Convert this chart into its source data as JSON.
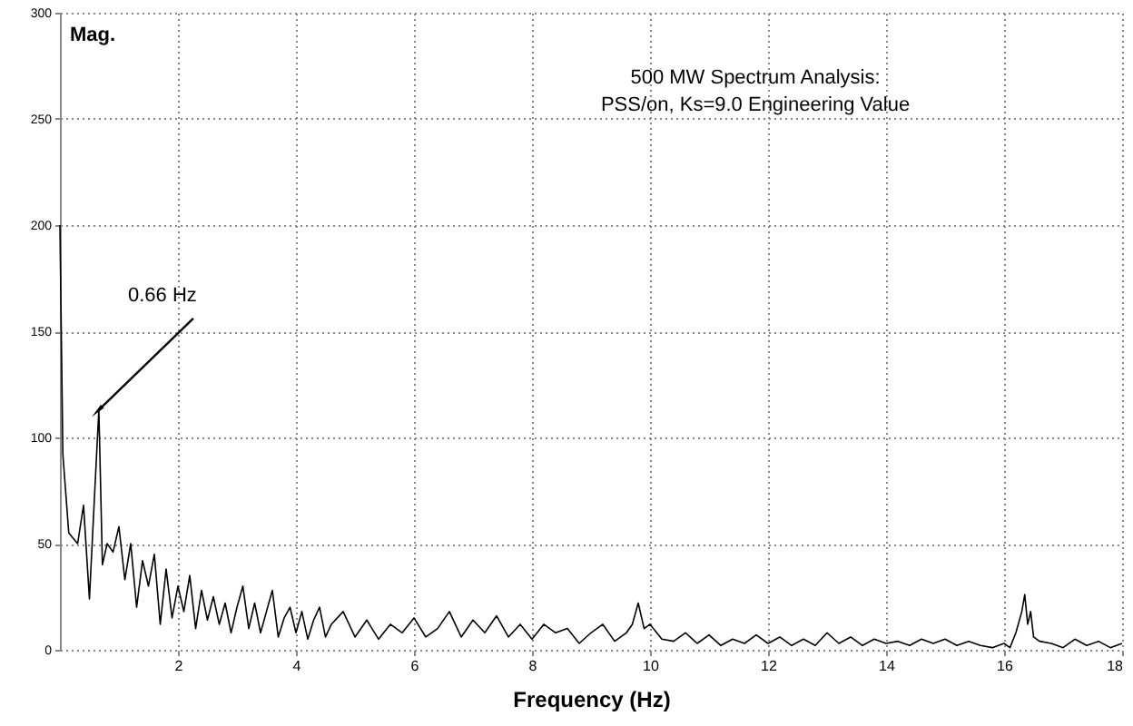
{
  "chart_data": {
    "type": "line",
    "title": "500 MW Spectrum Analysis:",
    "subtitle": "PSS/on, Ks=9.0 Engineering Value",
    "xlabel": "Frequency (Hz)",
    "ylabel": "Mag.",
    "annotations": [
      {
        "text": "0.66 Hz",
        "x": 0.66,
        "y": 113
      }
    ],
    "x": [
      0,
      0.05,
      0.15,
      0.3,
      0.4,
      0.5,
      0.6,
      0.66,
      0.72,
      0.8,
      0.9,
      1.0,
      1.1,
      1.2,
      1.3,
      1.4,
      1.5,
      1.6,
      1.7,
      1.8,
      1.9,
      2.0,
      2.1,
      2.2,
      2.3,
      2.4,
      2.5,
      2.6,
      2.7,
      2.8,
      2.9,
      3.0,
      3.1,
      3.2,
      3.3,
      3.4,
      3.5,
      3.6,
      3.7,
      3.8,
      3.9,
      4.0,
      4.1,
      4.2,
      4.3,
      4.4,
      4.5,
      4.6,
      4.8,
      5.0,
      5.2,
      5.4,
      5.6,
      5.8,
      6.0,
      6.2,
      6.4,
      6.6,
      6.8,
      7.0,
      7.2,
      7.4,
      7.6,
      7.8,
      8.0,
      8.2,
      8.4,
      8.6,
      8.8,
      9.0,
      9.2,
      9.4,
      9.6,
      9.7,
      9.8,
      9.9,
      10.0,
      10.2,
      10.4,
      10.6,
      10.8,
      11.0,
      11.2,
      11.4,
      11.6,
      11.8,
      12.0,
      12.2,
      12.4,
      12.6,
      12.8,
      13.0,
      13.2,
      13.4,
      13.6,
      13.8,
      14.0,
      14.2,
      14.4,
      14.6,
      14.8,
      15.0,
      15.2,
      15.4,
      15.6,
      15.8,
      16.0,
      16.1,
      16.2,
      16.3,
      16.35,
      16.4,
      16.45,
      16.5,
      16.6,
      16.8,
      17.0,
      17.2,
      17.4,
      17.6,
      17.8,
      18.0
    ],
    "series": [
      {
        "color": "#000000",
        "values": [
          200,
          92,
          55,
          50,
          68,
          24,
          80,
          113,
          40,
          50,
          46,
          58,
          33,
          50,
          20,
          42,
          30,
          45,
          12,
          38,
          15,
          30,
          18,
          35,
          10,
          28,
          14,
          25,
          12,
          22,
          8,
          20,
          30,
          10,
          22,
          8,
          18,
          28,
          6,
          15,
          20,
          8,
          18,
          5,
          14,
          20,
          6,
          12,
          18,
          6,
          14,
          5,
          12,
          8,
          15,
          6,
          10,
          18,
          6,
          14,
          8,
          16,
          6,
          12,
          5,
          12,
          8,
          10,
          3,
          8,
          12,
          4,
          8,
          12,
          22,
          10,
          12,
          5,
          4,
          8,
          3,
          7,
          2,
          5,
          3,
          7,
          3,
          6,
          2,
          5,
          2,
          8,
          3,
          6,
          2,
          5,
          3,
          4,
          2,
          5,
          3,
          5,
          2,
          4,
          2,
          1,
          3,
          1,
          8,
          18,
          26,
          12,
          18,
          6,
          4,
          3,
          1,
          5,
          2,
          4,
          1,
          3
        ]
      }
    ],
    "xlim": [
      0,
      18
    ],
    "xticks": [
      2,
      4,
      6,
      8,
      10,
      12,
      14,
      16,
      18
    ],
    "ylim": [
      0,
      300
    ],
    "yticks": [
      0,
      50,
      100,
      150,
      200,
      250,
      300
    ],
    "grid": true,
    "marker": "none",
    "line_style": "solid"
  }
}
